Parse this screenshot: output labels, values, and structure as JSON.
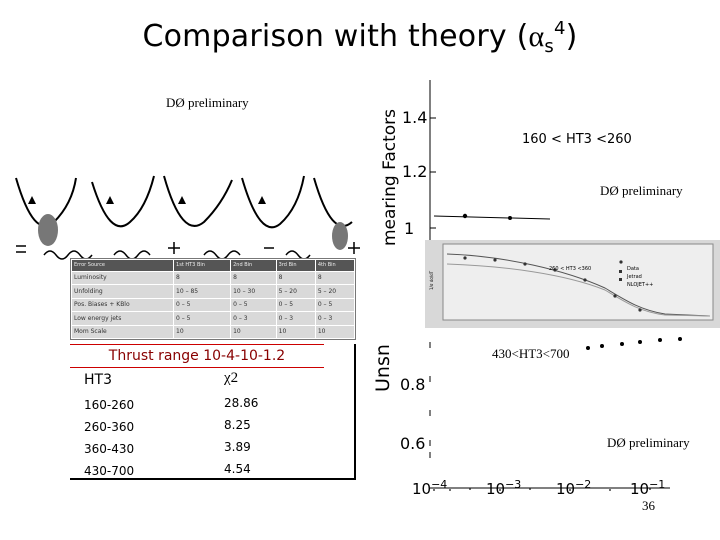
{
  "slide": {
    "title_main": "Comparison with theory  (",
    "title_alpha": "α",
    "title_sub": "s",
    "title_sup": "4",
    "title_close": ")",
    "page_number": "36"
  },
  "labels": {
    "preliminary_1": "DØ preliminary",
    "preliminary_2": "DØ preliminary",
    "preliminary_3": "DØ preliminary",
    "ht3_range_top": "160 < HT3 <260",
    "ht3_range_bottom": "430<HT3<700",
    "inset_range": "260 < HT3 <360"
  },
  "right_plot": {
    "ylabel_top": "mearing Factors",
    "ylabel_bottom": "Unsn",
    "yticks_top": [
      "1.4",
      "1.2",
      "1"
    ],
    "yticks_bottom": [
      "0.8",
      "0.6"
    ],
    "xticks": [
      "10",
      "10",
      "10",
      "10"
    ],
    "xtick_exps": [
      "−4",
      "−3",
      "−2",
      "−1"
    ]
  },
  "inset": {
    "legend": [
      "Data",
      "Jetrad",
      "NLOJET++"
    ]
  },
  "error_table": {
    "header": [
      "Error Source",
      "1st HT3 Bin",
      "2nd Bin",
      "3rd Bin",
      "4th Bin"
    ],
    "rows": [
      [
        "Luminosity",
        "8",
        "8",
        "8",
        "8"
      ],
      [
        "Unfolding",
        "10 – 85",
        "10 – 30",
        "5 – 20",
        "5 – 20"
      ],
      [
        "Pos. Biases + KBlo",
        "0 – 5",
        "0 – 5",
        "0 – 5",
        "0 – 5"
      ],
      [
        "Low energy jets",
        "0 – 5",
        "0 – 3",
        "0 – 3",
        "0 – 3"
      ],
      [
        "Mom Scale",
        "10",
        "10",
        "10",
        "10"
      ]
    ]
  },
  "chi2_table": {
    "header": "Thrust range  10-4-10-1.2",
    "col1": "HT3",
    "col2": "χ2",
    "rows": [
      {
        "range": "160-260",
        "chi2": "28.86"
      },
      {
        "range": "260-360",
        "chi2": "8.25"
      },
      {
        "range": "360-430",
        "chi2": "3.89"
      },
      {
        "range": "430-700",
        "chi2": "4.54"
      }
    ]
  }
}
